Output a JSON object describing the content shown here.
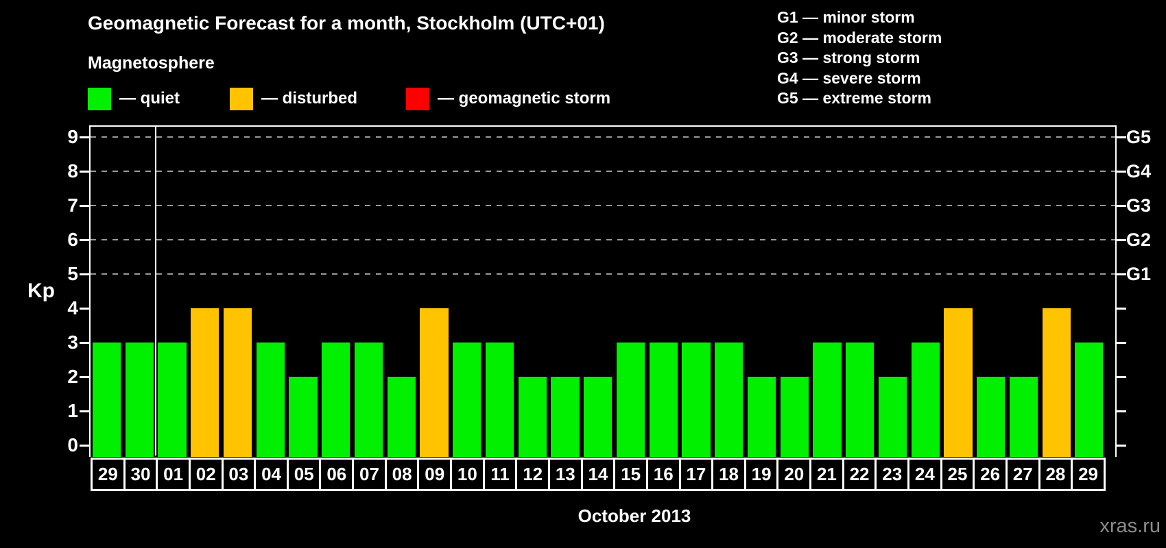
{
  "page": {
    "title": "Geomagnetic Forecast for a month, Stockholm (UTC+01)",
    "subtitle": "Magnetosphere",
    "watermark": "xras.ru"
  },
  "legend": {
    "items": [
      {
        "name": "quiet",
        "label": "— quiet",
        "color": "#00f000"
      },
      {
        "name": "disturbed",
        "label": "— disturbed",
        "color": "#ffc300"
      },
      {
        "name": "geomagnetic-storm",
        "label": "— geomagnetic storm",
        "color": "#ff0000"
      }
    ]
  },
  "storm_legend": [
    "G1 — minor storm",
    "G2 — moderate storm",
    "G3 — strong storm",
    "G4 — severe storm",
    "G5 — extreme storm"
  ],
  "chart_data": {
    "type": "bar",
    "title": "Geomagnetic Forecast for a month, Stockholm (UTC+01)",
    "subtitle": "Magnetosphere",
    "xlabel": "October 2013",
    "ylabel": "Kp",
    "ylim": [
      0,
      9
    ],
    "yticks": [
      0,
      1,
      2,
      3,
      4,
      5,
      6,
      7,
      8,
      9
    ],
    "gridlines_at": [
      5,
      6,
      7,
      8,
      9
    ],
    "grid": "dashed-horizontal",
    "legend_position": "top-left",
    "right_axis_labels": [
      {
        "kp": 9,
        "label": "G5"
      },
      {
        "kp": 8,
        "label": "G4"
      },
      {
        "kp": 7,
        "label": "G3"
      },
      {
        "kp": 6,
        "label": "G2"
      },
      {
        "kp": 5,
        "label": "G1"
      }
    ],
    "month_separator_after_index": 1,
    "categories": [
      "29",
      "30",
      "01",
      "02",
      "03",
      "04",
      "05",
      "06",
      "07",
      "08",
      "09",
      "10",
      "11",
      "12",
      "13",
      "14",
      "15",
      "16",
      "17",
      "18",
      "19",
      "20",
      "21",
      "22",
      "23",
      "24",
      "25",
      "26",
      "27",
      "28",
      "29"
    ],
    "values": [
      3,
      3,
      3,
      4,
      4,
      3,
      2,
      3,
      3,
      2,
      4,
      3,
      3,
      2,
      2,
      2,
      3,
      3,
      3,
      3,
      2,
      2,
      3,
      3,
      2,
      3,
      4,
      2,
      2,
      4,
      3
    ],
    "statuses": [
      "quiet",
      "quiet",
      "quiet",
      "disturbed",
      "disturbed",
      "quiet",
      "quiet",
      "quiet",
      "quiet",
      "quiet",
      "disturbed",
      "quiet",
      "quiet",
      "quiet",
      "quiet",
      "quiet",
      "quiet",
      "quiet",
      "quiet",
      "quiet",
      "quiet",
      "quiet",
      "quiet",
      "quiet",
      "quiet",
      "quiet",
      "disturbed",
      "quiet",
      "quiet",
      "disturbed",
      "quiet"
    ],
    "colors": {
      "quiet": "#00f000",
      "disturbed": "#ffc300",
      "storm": "#ff0000"
    }
  }
}
